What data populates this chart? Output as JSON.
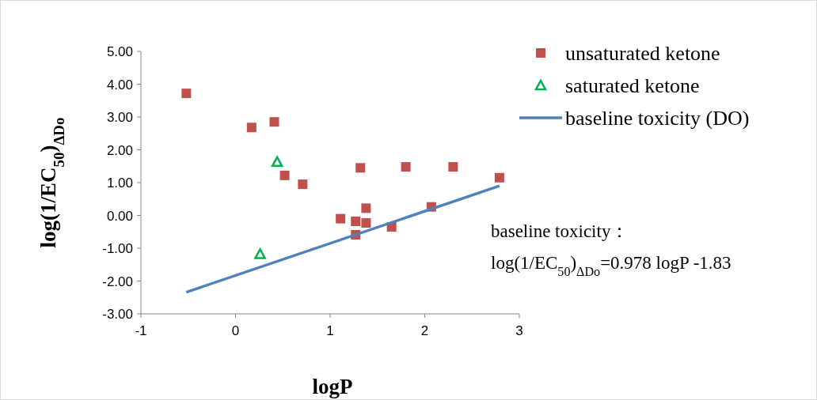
{
  "chart_data": {
    "type": "scatter",
    "xlabel": "logP",
    "ylabel": "log(1/EC$_{50}$)$_{ΔDo}$",
    "xlim": [
      -1,
      3
    ],
    "xticks": [
      -1,
      0,
      1,
      2,
      3
    ],
    "ylim": [
      -3,
      5
    ],
    "yticks": [
      {
        "value": -3,
        "label": "-3.00"
      },
      {
        "value": -2,
        "label": "-2.00"
      },
      {
        "value": -1,
        "label": "-1.00"
      },
      {
        "value": 0,
        "label": "0.00"
      },
      {
        "value": 1,
        "label": "1.00"
      },
      {
        "value": 2,
        "label": "2.00"
      },
      {
        "value": 3,
        "label": "3.00"
      },
      {
        "value": 4,
        "label": "4.00"
      },
      {
        "value": 5,
        "label": "5.00"
      }
    ],
    "grid": false,
    "legend": "top right",
    "series": [
      {
        "name": "unsaturated ketone",
        "marker": "square",
        "color": "#c0504d",
        "x": [
          -0.52,
          0.17,
          0.41,
          0.52,
          0.71,
          1.11,
          1.27,
          1.27,
          1.32,
          1.38,
          1.38,
          1.65,
          1.8,
          2.07,
          2.3,
          2.79
        ],
        "values": [
          3.72,
          2.68,
          2.85,
          1.22,
          0.95,
          -0.1,
          -0.18,
          -0.59,
          1.45,
          0.22,
          -0.23,
          -0.35,
          1.48,
          0.26,
          1.48,
          1.15
        ]
      },
      {
        "name": "saturated ketone",
        "marker": "triangle",
        "color": "#00b050",
        "x": [
          0.44,
          0.26
        ],
        "values": [
          1.63,
          -1.18
        ]
      },
      {
        "name": "baseline toxicity (DO)",
        "type": "line",
        "marker": "none",
        "line_style": "solid",
        "color": "#4f81bd",
        "x": [
          -0.52,
          2.79
        ],
        "values": [
          -2.34,
          0.9
        ]
      }
    ],
    "annotations": [
      "baseline toxicity：",
      "log(1/EC$_{50}$)$_{ΔDo}$=0.978 logP -1.83"
    ]
  }
}
